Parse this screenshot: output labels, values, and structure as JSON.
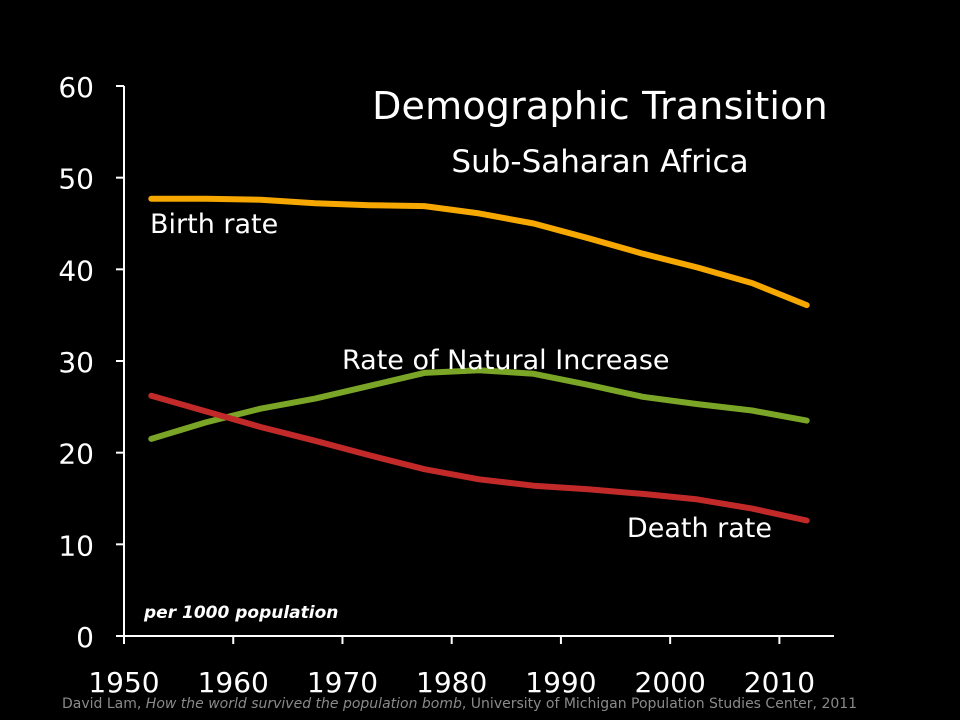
{
  "chart_data": {
    "type": "line",
    "title": "Demographic Transition",
    "subtitle": "Sub-Saharan Africa",
    "unit_note": "per 1000 population",
    "xlabel": "",
    "ylabel": "",
    "xlim": [
      1950,
      2015
    ],
    "ylim": [
      0,
      60
    ],
    "xticks": [
      1950,
      1960,
      1970,
      1980,
      1990,
      2000,
      2010
    ],
    "yticks": [
      0,
      10,
      20,
      30,
      40,
      50,
      60
    ],
    "grid": false,
    "legend": "none",
    "series": [
      {
        "name": "Birth rate",
        "color": "#f6a800",
        "x": [
          1952.5,
          1957.5,
          1962.5,
          1967.5,
          1972.5,
          1977.5,
          1982.5,
          1987.5,
          1992.5,
          1997.5,
          2002.5,
          2007.5,
          2012.5
        ],
        "y": [
          47.7,
          47.7,
          47.6,
          47.2,
          47.0,
          46.9,
          46.1,
          45.0,
          43.4,
          41.7,
          40.2,
          38.5,
          36.1
        ]
      },
      {
        "name": "Rate of Natural Increase",
        "color": "#7aa526",
        "x": [
          1952.5,
          1957.5,
          1962.5,
          1967.5,
          1972.5,
          1977.5,
          1982.5,
          1987.5,
          1992.5,
          1997.5,
          2002.5,
          2007.5,
          2012.5
        ],
        "y": [
          21.5,
          23.3,
          24.8,
          25.9,
          27.3,
          28.7,
          29.0,
          28.6,
          27.4,
          26.1,
          25.3,
          24.6,
          23.5
        ]
      },
      {
        "name": "Death rate",
        "color": "#c22a2a",
        "x": [
          1952.5,
          1957.5,
          1962.5,
          1967.5,
          1972.5,
          1977.5,
          1982.5,
          1987.5,
          1992.5,
          1997.5,
          2002.5,
          2007.5,
          2012.5
        ],
        "y": [
          26.2,
          24.5,
          22.8,
          21.3,
          19.7,
          18.2,
          17.1,
          16.4,
          16.0,
          15.5,
          14.9,
          13.9,
          12.6
        ]
      }
    ]
  },
  "footer": {
    "author": "David Lam, ",
    "book": "How the world survived the population bomb",
    "rest": ", University of Michigan Population Studies Center, 2011"
  }
}
